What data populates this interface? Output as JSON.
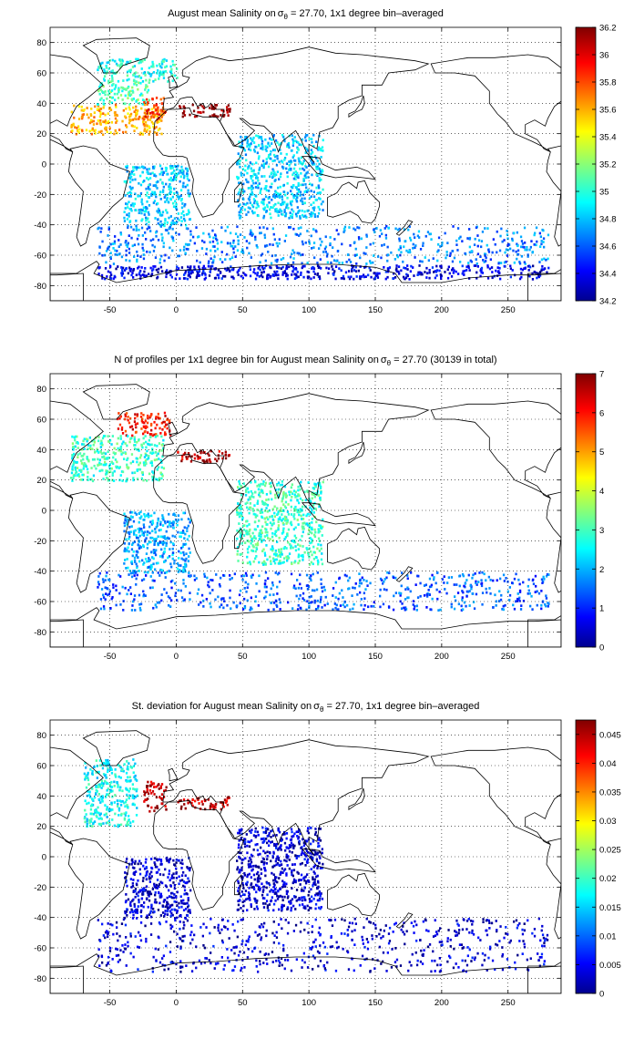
{
  "chart_data": [
    {
      "type": "heatmap",
      "title_main": "August mean Salinity on",
      "title_sigma": "σ",
      "title_sub": "θ",
      "title_rest": " = 27.70, 1x1 degree bin–averaged",
      "xlim": [
        -95,
        290
      ],
      "ylim": [
        -90,
        90
      ],
      "xticks": [
        -50,
        0,
        50,
        100,
        150,
        200,
        250
      ],
      "yticks": [
        -80,
        -60,
        -40,
        -20,
        0,
        20,
        40,
        60,
        80
      ],
      "grid": true,
      "colorbar": {
        "min": 34.2,
        "max": 36.2,
        "ticks": [
          34.2,
          34.4,
          34.6,
          34.8,
          35,
          35.2,
          35.4,
          35.6,
          35.8,
          36,
          36.2
        ],
        "colormap": "jet"
      },
      "regions": [
        {
          "lon": [
            -80,
            -10
          ],
          "lat": [
            20,
            40
          ],
          "value": 35.6
        },
        {
          "lon": [
            -60,
            -20
          ],
          "lat": [
            40,
            55
          ],
          "value": 35.1
        },
        {
          "lon": [
            -60,
            0
          ],
          "lat": [
            55,
            70
          ],
          "value": 35.0
        },
        {
          "lon": [
            -25,
            -8
          ],
          "lat": [
            30,
            45
          ],
          "value": 35.9
        },
        {
          "lon": [
            0,
            40
          ],
          "lat": [
            32,
            40
          ],
          "value": 36.2
        },
        {
          "lon": [
            -40,
            10
          ],
          "lat": [
            -40,
            0
          ],
          "value": 34.85
        },
        {
          "lon": [
            45,
            110
          ],
          "lat": [
            -35,
            20
          ],
          "value": 34.85
        },
        {
          "lon": [
            -60,
            280
          ],
          "lat": [
            -65,
            -40
          ],
          "value": 34.7
        },
        {
          "lon": [
            -60,
            280
          ],
          "lat": [
            -75,
            -66
          ],
          "value": 34.4
        }
      ]
    },
    {
      "type": "heatmap",
      "title_main": "N of profiles per 1x1 degree bin for August mean Salinity on",
      "title_sigma": "σ",
      "title_sub": "θ",
      "title_rest": " = 27.70 (30139 in total)",
      "xlim": [
        -95,
        290
      ],
      "ylim": [
        -90,
        90
      ],
      "xticks": [
        -50,
        0,
        50,
        100,
        150,
        200,
        250
      ],
      "yticks": [
        -80,
        -60,
        -40,
        -20,
        0,
        20,
        40,
        60,
        80
      ],
      "grid": true,
      "colorbar": {
        "min": 0,
        "max": 7,
        "ticks": [
          0,
          1,
          2,
          3,
          4,
          5,
          6,
          7
        ],
        "colormap": "jet"
      },
      "regions": [
        {
          "lon": [
            -45,
            -5
          ],
          "lat": [
            50,
            65
          ],
          "value": 6
        },
        {
          "lon": [
            -80,
            -10
          ],
          "lat": [
            20,
            50
          ],
          "value": 3
        },
        {
          "lon": [
            0,
            40
          ],
          "lat": [
            32,
            40
          ],
          "value": 6.5
        },
        {
          "lon": [
            -40,
            10
          ],
          "lat": [
            -40,
            0
          ],
          "value": 2
        },
        {
          "lon": [
            45,
            110
          ],
          "lat": [
            -35,
            20
          ],
          "value": 3
        },
        {
          "lon": [
            -60,
            280
          ],
          "lat": [
            -65,
            -40
          ],
          "value": 1.5
        }
      ]
    },
    {
      "type": "heatmap",
      "title_main": "St. deviation for August mean Salinity on",
      "title_sigma": "σ",
      "title_sub": "θ",
      "title_rest": " = 27.70, 1x1 degree bin–averaged",
      "xlim": [
        -95,
        290
      ],
      "ylim": [
        -90,
        90
      ],
      "xticks": [
        -50,
        0,
        50,
        100,
        150,
        200,
        250
      ],
      "yticks": [
        -80,
        -60,
        -40,
        -20,
        0,
        20,
        40,
        60,
        80
      ],
      "grid": true,
      "colorbar": {
        "min": 0,
        "max": 0.0475,
        "ticks": [
          0,
          0.005,
          0.01,
          0.015,
          0.02,
          0.025,
          0.03,
          0.035,
          0.04,
          0.045
        ],
        "colormap": "jet"
      },
      "regions": [
        {
          "lon": [
            -25,
            -8
          ],
          "lat": [
            30,
            50
          ],
          "value": 0.045
        },
        {
          "lon": [
            -70,
            -30
          ],
          "lat": [
            20,
            65
          ],
          "value": 0.018
        },
        {
          "lon": [
            0,
            40
          ],
          "lat": [
            32,
            40
          ],
          "value": 0.045
        },
        {
          "lon": [
            -40,
            10
          ],
          "lat": [
            -40,
            0
          ],
          "value": 0.004
        },
        {
          "lon": [
            45,
            110
          ],
          "lat": [
            -35,
            20
          ],
          "value": 0.004
        },
        {
          "lon": [
            -60,
            280
          ],
          "lat": [
            -75,
            -40
          ],
          "value": 0.004
        }
      ]
    }
  ]
}
